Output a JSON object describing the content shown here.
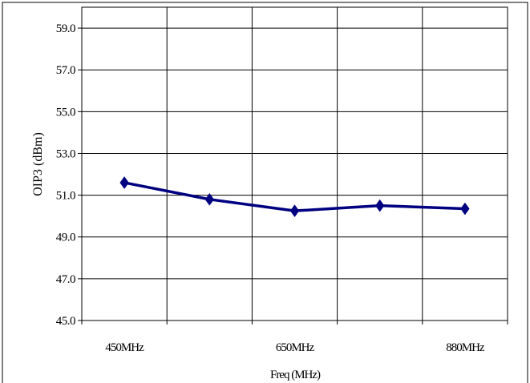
{
  "chart_data": {
    "type": "line",
    "title": "",
    "xlabel": "Freq (MHz)",
    "ylabel": "OIP3 (dBm)",
    "categories": [
      "450MHz",
      "",
      "650MHz",
      "",
      "880MHz"
    ],
    "ylim": [
      45.0,
      60.0
    ],
    "yticks": [
      "45.0",
      "47.0",
      "49.0",
      "51.0",
      "53.0",
      "55.0",
      "57.0",
      "59.0"
    ],
    "series": [
      {
        "name": "",
        "color": "#000080",
        "marker": "diamond",
        "values": [
          51.6,
          50.8,
          50.25,
          50.5,
          50.35
        ]
      }
    ],
    "grid": true,
    "legend": "none"
  }
}
